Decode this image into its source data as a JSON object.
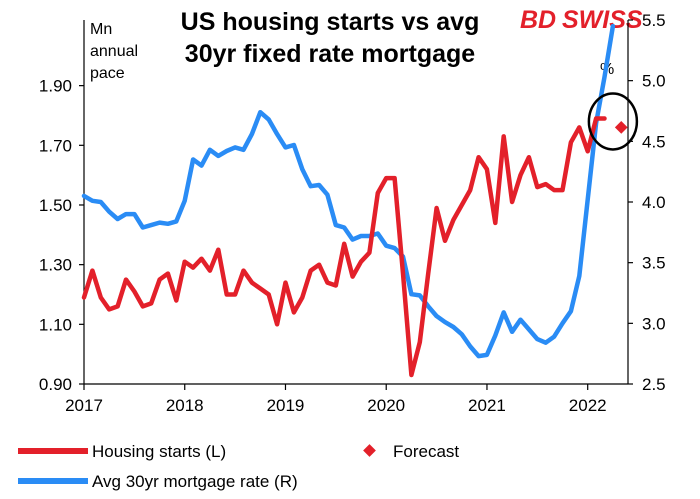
{
  "brand": {
    "text_a": "BD",
    "text_b": "SWISS",
    "color": "#e3202a"
  },
  "chart_data": {
    "type": "line",
    "title_lines": [
      "US housing starts vs avg",
      "30yr fixed rate mortgage"
    ],
    "left_unit_lines": [
      "Mn",
      "annual",
      "pace"
    ],
    "right_unit": "%",
    "x_tick_labels": [
      "2017",
      "2018",
      "2019",
      "2020",
      "2021",
      "2022"
    ],
    "x_ticks": [
      2017,
      2018,
      2019,
      2020,
      2021,
      2022
    ],
    "xlim": [
      2017,
      2022.4
    ],
    "y_left": {
      "ticks": [
        0.9,
        1.1,
        1.3,
        1.5,
        1.7,
        1.9
      ],
      "tick_labels": [
        "0.90",
        "1.10",
        "1.30",
        "1.50",
        "1.70",
        "1.90"
      ],
      "lim": [
        0.9,
        2.12
      ]
    },
    "y_right": {
      "ticks": [
        2.5,
        3.0,
        3.5,
        4.0,
        4.5,
        5.0,
        5.5
      ],
      "tick_labels": [
        "2.5",
        "3.0",
        "3.5",
        "4.0",
        "4.5",
        "5.0",
        "5.5"
      ],
      "lim": [
        2.5,
        5.5
      ]
    },
    "series": [
      {
        "name": "Housing starts (L)",
        "axis": "left",
        "color": "#e3202a",
        "x_start": 2017.0,
        "step": 0.08333,
        "values": [
          1.19,
          1.28,
          1.19,
          1.15,
          1.16,
          1.25,
          1.21,
          1.16,
          1.17,
          1.25,
          1.27,
          1.18,
          1.31,
          1.29,
          1.32,
          1.28,
          1.35,
          1.2,
          1.2,
          1.28,
          1.24,
          1.22,
          1.2,
          1.1,
          1.24,
          1.14,
          1.19,
          1.28,
          1.3,
          1.24,
          1.23,
          1.37,
          1.26,
          1.31,
          1.34,
          1.54,
          1.59,
          1.59,
          1.27,
          0.93,
          1.04,
          1.27,
          1.49,
          1.38,
          1.45,
          1.5,
          1.55,
          1.66,
          1.62,
          1.44,
          1.73,
          1.51,
          1.6,
          1.66,
          1.56,
          1.57,
          1.55,
          1.55,
          1.71,
          1.76,
          1.68,
          1.79,
          1.79
        ],
        "forecast_point": {
          "x": 2022.333,
          "y": 1.76
        }
      },
      {
        "name": "Avg 30yr mortgage rate (R)",
        "axis": "right",
        "color": "#2a8cf5",
        "x_start": 2017.0,
        "step": 0.08333,
        "values": [
          4.05,
          4.01,
          4.0,
          3.92,
          3.86,
          3.9,
          3.9,
          3.79,
          3.81,
          3.83,
          3.82,
          3.84,
          4.01,
          4.35,
          4.3,
          4.43,
          4.38,
          4.42,
          4.45,
          4.43,
          4.56,
          4.74,
          4.68,
          4.56,
          4.45,
          4.47,
          4.27,
          4.13,
          4.14,
          4.06,
          3.81,
          3.79,
          3.69,
          3.72,
          3.72,
          3.74,
          3.64,
          3.62,
          3.55,
          3.24,
          3.23,
          3.14,
          3.06,
          3.01,
          2.97,
          2.91,
          2.81,
          2.73,
          2.74,
          2.9,
          3.09,
          2.93,
          3.03,
          2.95,
          2.87,
          2.84,
          2.89,
          3.0,
          3.1,
          3.39,
          4.02,
          4.65,
          5.03,
          5.45
        ]
      }
    ],
    "circle_annotation_around": {
      "x": 2022.25,
      "y_left": 1.78
    },
    "legend": [
      {
        "label": "Housing starts (L)",
        "kind": "line",
        "color": "#e3202a"
      },
      {
        "label": "Forecast",
        "kind": "marker",
        "color": "#e3202a"
      },
      {
        "label": "Avg 30yr mortgage rate (R)",
        "kind": "line",
        "color": "#2a8cf5"
      }
    ]
  }
}
